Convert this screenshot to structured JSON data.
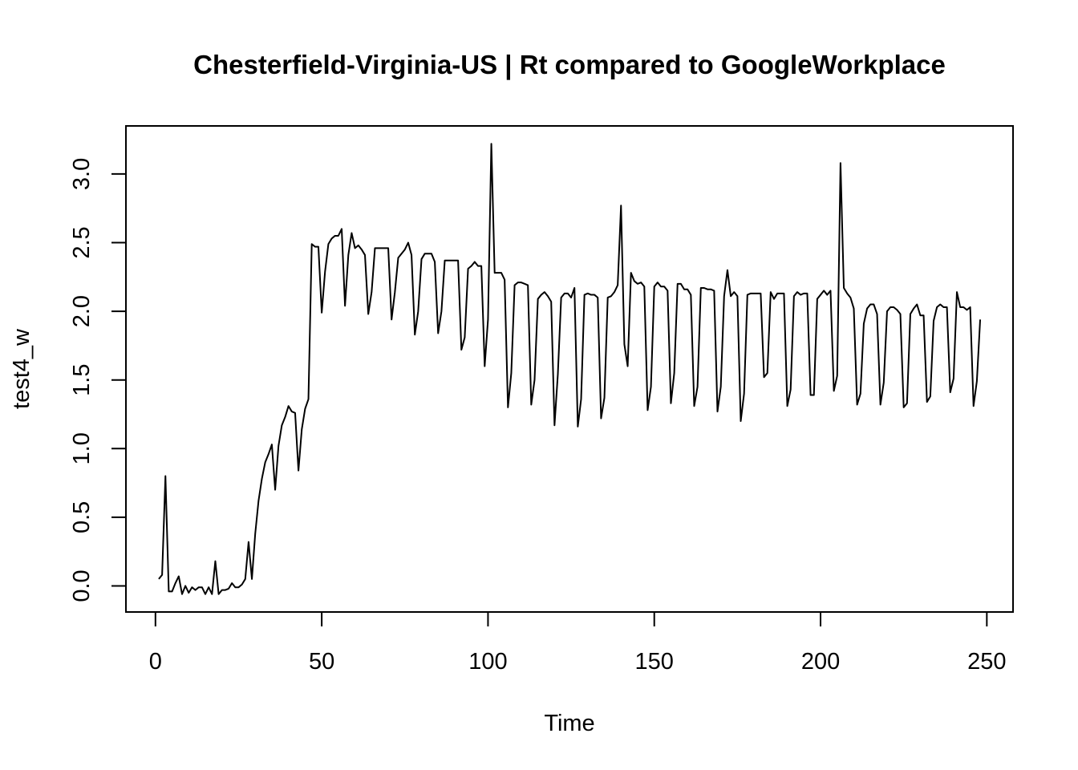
{
  "chart_data": {
    "type": "line",
    "title": "Chesterfield-Virginia-US | Rt compared to GoogleWorkplace",
    "x_label": "Time",
    "y_label": "test4_w",
    "color": "#000000",
    "x": [
      1,
      2,
      3,
      4,
      5,
      6,
      7,
      8,
      9,
      10,
      11,
      12,
      13,
      14,
      15,
      16,
      17,
      18,
      19,
      20,
      21,
      22,
      23,
      24,
      25,
      26,
      27,
      28,
      29,
      30,
      31,
      32,
      33,
      34,
      35,
      36,
      37,
      38,
      39,
      40,
      41,
      42,
      43,
      44,
      45,
      46,
      47,
      48,
      49,
      50,
      51,
      52,
      53,
      54,
      55,
      56,
      57,
      58,
      59,
      60,
      61,
      62,
      63,
      64,
      65,
      66,
      67,
      68,
      69,
      70,
      71,
      72,
      73,
      74,
      75,
      76,
      77,
      78,
      79,
      80,
      81,
      82,
      83,
      84,
      85,
      86,
      87,
      88,
      89,
      90,
      91,
      92,
      93,
      94,
      95,
      96,
      97,
      98,
      99,
      100,
      101,
      102,
      103,
      104,
      105,
      106,
      107,
      108,
      109,
      110,
      111,
      112,
      113,
      114,
      115,
      116,
      117,
      118,
      119,
      120,
      121,
      122,
      123,
      124,
      125,
      126,
      127,
      128,
      129,
      130,
      131,
      132,
      133,
      134,
      135,
      136,
      137,
      138,
      139,
      140,
      141,
      142,
      143,
      144,
      145,
      146,
      147,
      148,
      149,
      150,
      151,
      152,
      153,
      154,
      155,
      156,
      157,
      158,
      159,
      160,
      161,
      162,
      163,
      164,
      165,
      166,
      167,
      168,
      169,
      170,
      171,
      172,
      173,
      174,
      175,
      176,
      177,
      178,
      179,
      180,
      181,
      182,
      183,
      184,
      185,
      186,
      187,
      188,
      189,
      190,
      191,
      192,
      193,
      194,
      195,
      196,
      197,
      198,
      199,
      200,
      201,
      202,
      203,
      204,
      205,
      206,
      207,
      208,
      209,
      210,
      211,
      212,
      213,
      214,
      215,
      216,
      217,
      218,
      219,
      220,
      221,
      222,
      223,
      224,
      225,
      226,
      227,
      228,
      229,
      230,
      231,
      232,
      233,
      234,
      235,
      236,
      237,
      238,
      239,
      240,
      241,
      242,
      243,
      244,
      245,
      246,
      247,
      248
    ],
    "values": [
      0.05,
      0.08,
      0.8,
      -0.04,
      -0.04,
      0.02,
      0.07,
      -0.06,
      0.0,
      -0.05,
      -0.01,
      -0.03,
      -0.01,
      -0.01,
      -0.06,
      -0.01,
      -0.06,
      0.18,
      -0.06,
      -0.03,
      -0.03,
      -0.02,
      0.02,
      -0.01,
      -0.01,
      0.01,
      0.05,
      0.32,
      0.05,
      0.38,
      0.62,
      0.78,
      0.9,
      0.96,
      1.03,
      0.7,
      1.02,
      1.17,
      1.23,
      1.31,
      1.27,
      1.26,
      0.84,
      1.14,
      1.29,
      1.36,
      2.49,
      2.47,
      2.47,
      1.99,
      2.29,
      2.49,
      2.53,
      2.55,
      2.55,
      2.6,
      2.04,
      2.41,
      2.57,
      2.46,
      2.48,
      2.45,
      2.41,
      1.98,
      2.14,
      2.46,
      2.46,
      2.46,
      2.46,
      2.46,
      1.94,
      2.14,
      2.39,
      2.42,
      2.45,
      2.5,
      2.41,
      1.83,
      2.0,
      2.38,
      2.42,
      2.42,
      2.42,
      2.36,
      1.84,
      2.0,
      2.37,
      2.37,
      2.37,
      2.37,
      2.37,
      1.72,
      1.81,
      2.31,
      2.33,
      2.36,
      2.33,
      2.33,
      1.6,
      1.94,
      3.22,
      2.28,
      2.28,
      2.28,
      2.23,
      1.3,
      1.55,
      2.19,
      2.21,
      2.21,
      2.2,
      2.19,
      1.32,
      1.5,
      2.09,
      2.12,
      2.14,
      2.11,
      2.07,
      1.17,
      1.54,
      2.1,
      2.13,
      2.13,
      2.1,
      2.17,
      1.16,
      1.36,
      2.12,
      2.13,
      2.12,
      2.12,
      2.1,
      1.22,
      1.37,
      2.1,
      2.11,
      2.14,
      2.19,
      2.77,
      1.76,
      1.6,
      2.28,
      2.22,
      2.2,
      2.21,
      2.18,
      1.28,
      1.45,
      2.18,
      2.21,
      2.18,
      2.18,
      2.15,
      1.33,
      1.55,
      2.2,
      2.2,
      2.16,
      2.16,
      2.12,
      1.31,
      1.45,
      2.17,
      2.17,
      2.16,
      2.16,
      2.15,
      1.27,
      1.45,
      2.11,
      2.3,
      2.11,
      2.14,
      2.11,
      1.2,
      1.4,
      2.12,
      2.13,
      2.13,
      2.13,
      2.13,
      1.52,
      1.55,
      2.14,
      2.09,
      2.13,
      2.13,
      2.13,
      1.31,
      1.43,
      2.11,
      2.14,
      2.12,
      2.13,
      2.13,
      1.39,
      1.39,
      2.09,
      2.12,
      2.15,
      2.12,
      2.15,
      1.42,
      1.53,
      3.08,
      2.17,
      2.13,
      2.1,
      2.02,
      1.32,
      1.4,
      1.91,
      2.02,
      2.05,
      2.05,
      1.98,
      1.32,
      1.48,
      2.0,
      2.03,
      2.03,
      2.01,
      1.98,
      1.3,
      1.33,
      1.98,
      2.02,
      2.05,
      1.97,
      1.97,
      1.34,
      1.38,
      1.93,
      2.03,
      2.05,
      2.03,
      2.03,
      1.41,
      1.51,
      2.14,
      2.03,
      2.03,
      2.01,
      2.03,
      1.31,
      1.49,
      1.94
    ],
    "xlim": [
      -8.88,
      257.88
    ],
    "ylim": [
      -0.19,
      3.35
    ],
    "xticks": [
      0,
      50,
      100,
      150,
      200,
      250
    ],
    "yticks": [
      {
        "value": 0,
        "label": "0.0"
      },
      0.5,
      {
        "value": 1,
        "label": "1.0"
      },
      1.5,
      {
        "value": 2,
        "label": "2.0"
      },
      2.5,
      {
        "value": 3,
        "label": "3.0"
      }
    ]
  }
}
